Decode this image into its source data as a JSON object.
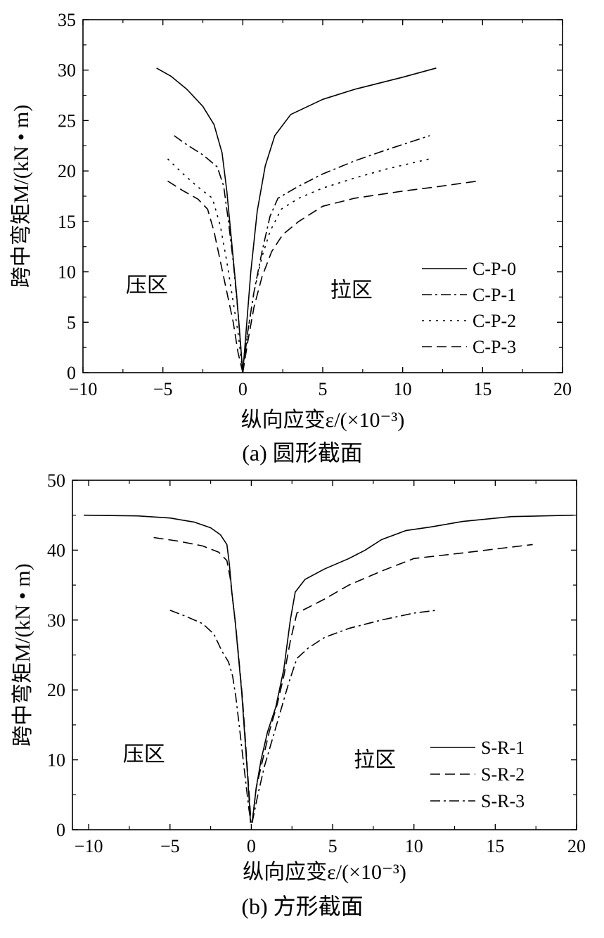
{
  "chart_data": [
    {
      "type": "line",
      "caption": "(a) 圆形截面",
      "xlabel": "纵向应变ε/(×10⁻³)",
      "ylabel": "跨中弯矩M/(kN • m)",
      "xlim": [
        -10,
        20
      ],
      "ylim": [
        0,
        35
      ],
      "xticks": [
        -10,
        -5,
        0,
        5,
        10,
        15,
        20
      ],
      "xtick_labels": [
        "−10",
        "−5",
        "0",
        "5",
        "10",
        "15",
        "20"
      ],
      "yticks": [
        0,
        5,
        10,
        15,
        20,
        25,
        30,
        35
      ],
      "ytick_labels": [
        "0",
        "5",
        "10",
        "15",
        "20",
        "25",
        "30",
        "35"
      ],
      "annotations": [
        {
          "text": "压区",
          "x": -6,
          "y": 8
        },
        {
          "text": "拉区",
          "x": 6.8,
          "y": 7.5
        }
      ],
      "legend_position": "bottom-right",
      "series": [
        {
          "name": "C-P-0",
          "dash": "solid",
          "left": [
            [
              -5.4,
              30.2
            ],
            [
              -4.5,
              29.4
            ],
            [
              -3.5,
              28.1
            ],
            [
              -2.5,
              26.4
            ],
            [
              -1.8,
              24.6
            ],
            [
              -1.3,
              21.8
            ],
            [
              -1.0,
              18
            ],
            [
              -0.7,
              13
            ],
            [
              -0.4,
              8
            ],
            [
              -0.2,
              4
            ],
            [
              0,
              0
            ]
          ],
          "right": [
            [
              0,
              0
            ],
            [
              0.2,
              4
            ],
            [
              0.5,
              10
            ],
            [
              0.9,
              16
            ],
            [
              1.4,
              20.5
            ],
            [
              2.0,
              23.5
            ],
            [
              3.0,
              25.6
            ],
            [
              5.0,
              27.1
            ],
            [
              7.0,
              28.1
            ],
            [
              10.0,
              29.3
            ],
            [
              12.1,
              30.2
            ]
          ]
        },
        {
          "name": "C-P-1",
          "dash": "dashdot",
          "left": [
            [
              -4.3,
              23.5
            ],
            [
              -3.5,
              22.6
            ],
            [
              -2.5,
              21.6
            ],
            [
              -1.6,
              20.4
            ],
            [
              -1.2,
              18.5
            ],
            [
              -0.9,
              15
            ],
            [
              -0.6,
              11
            ],
            [
              -0.3,
              6
            ],
            [
              0,
              0
            ]
          ],
          "right": [
            [
              0,
              0
            ],
            [
              0.3,
              4
            ],
            [
              0.7,
              8
            ],
            [
              1.2,
              12
            ],
            [
              1.7,
              15.5
            ],
            [
              2.2,
              17.3
            ],
            [
              3.5,
              18.5
            ],
            [
              5.0,
              19.7
            ],
            [
              7.0,
              21.0
            ],
            [
              9.0,
              22.1
            ],
            [
              11.7,
              23.5
            ]
          ]
        },
        {
          "name": "C-P-2",
          "dash": "dotted",
          "left": [
            [
              -4.7,
              21.2
            ],
            [
              -3.8,
              19.8
            ],
            [
              -2.8,
              18.4
            ],
            [
              -1.9,
              17.3
            ],
            [
              -1.4,
              14.5
            ],
            [
              -1.0,
              11
            ],
            [
              -0.6,
              7
            ],
            [
              -0.3,
              4
            ],
            [
              0,
              0
            ]
          ],
          "right": [
            [
              0,
              0
            ],
            [
              0.3,
              4
            ],
            [
              0.7,
              8
            ],
            [
              1.2,
              11.5
            ],
            [
              1.7,
              14
            ],
            [
              2.4,
              16.2
            ],
            [
              3.5,
              17.3
            ],
            [
              5.0,
              18.3
            ],
            [
              7.0,
              19.3
            ],
            [
              9.0,
              20.2
            ],
            [
              11.7,
              21.2
            ]
          ]
        },
        {
          "name": "C-P-3",
          "dash": "dashed",
          "left": [
            [
              -4.7,
              19.0
            ],
            [
              -3.8,
              18.1
            ],
            [
              -2.8,
              17.2
            ],
            [
              -2.2,
              16.2
            ],
            [
              -1.8,
              14
            ],
            [
              -1.4,
              11
            ],
            [
              -1.0,
              8
            ],
            [
              -0.6,
              5
            ],
            [
              -0.3,
              2
            ],
            [
              0,
              0
            ]
          ],
          "right": [
            [
              0,
              0
            ],
            [
              0.3,
              3
            ],
            [
              0.7,
              6.5
            ],
            [
              1.2,
              9.5
            ],
            [
              1.8,
              12
            ],
            [
              2.5,
              13.7
            ],
            [
              3.5,
              15
            ],
            [
              5.0,
              16.5
            ],
            [
              7.0,
              17.3
            ],
            [
              10.0,
              18
            ],
            [
              12.0,
              18.4
            ],
            [
              14.7,
              19.0
            ]
          ]
        }
      ]
    },
    {
      "type": "line",
      "caption": "(b) 方形截面",
      "xlabel": "纵向应变ε/(×10⁻³)",
      "ylabel": "跨中弯矩M/(kN • m)",
      "xlim": [
        -11,
        20
      ],
      "ylim": [
        0,
        50
      ],
      "xticks": [
        -10,
        -5,
        0,
        5,
        10,
        15,
        20
      ],
      "xtick_labels": [
        "−10",
        "−5",
        "0",
        "5",
        "10",
        "15",
        "20"
      ],
      "yticks": [
        0,
        10,
        20,
        30,
        40,
        50
      ],
      "ytick_labels": [
        "0",
        "10",
        "20",
        "30",
        "40",
        "50"
      ],
      "annotations": [
        {
          "text": "压区",
          "x": -6.6,
          "y": 9.8
        },
        {
          "text": "拉区",
          "x": 7.6,
          "y": 9
        }
      ],
      "legend_position": "bottom-right",
      "series": [
        {
          "name": "S-R-1",
          "dash": "solid",
          "left": [
            [
              -10.3,
              45
            ],
            [
              -7,
              44.9
            ],
            [
              -5,
              44.6
            ],
            [
              -3.5,
              44
            ],
            [
              -2.5,
              43.2
            ],
            [
              -1.9,
              42.2
            ],
            [
              -1.5,
              40.8
            ],
            [
              -1.35,
              38
            ],
            [
              -1.2,
              34
            ],
            [
              -1.0,
              30
            ],
            [
              -0.8,
              25
            ],
            [
              -0.6,
              20
            ],
            [
              -0.45,
              15
            ],
            [
              -0.3,
              10
            ],
            [
              -0.15,
              5
            ],
            [
              -0.05,
              1
            ]
          ],
          "right": [
            [
              0.05,
              1
            ],
            [
              0.3,
              6
            ],
            [
              0.6,
              10
            ],
            [
              1.0,
              14
            ],
            [
              1.5,
              17.5
            ],
            [
              2.0,
              23
            ],
            [
              2.4,
              30
            ],
            [
              2.7,
              34
            ],
            [
              3.3,
              35.8
            ],
            [
              4.5,
              37.3
            ],
            [
              6.0,
              38.8
            ],
            [
              7.0,
              40
            ],
            [
              8.0,
              41.5
            ],
            [
              9.5,
              42.8
            ],
            [
              11,
              43.3
            ],
            [
              13,
              44.1
            ],
            [
              16,
              44.8
            ],
            [
              19.8,
              45
            ]
          ]
        },
        {
          "name": "S-R-2",
          "dash": "dashed",
          "left": [
            [
              -6,
              41.8
            ],
            [
              -4.5,
              41.3
            ],
            [
              -3,
              40.6
            ],
            [
              -2,
              39.7
            ],
            [
              -1.5,
              38.5
            ],
            [
              -1.3,
              36
            ],
            [
              -1.15,
              33
            ],
            [
              -0.95,
              29
            ],
            [
              -0.75,
              24
            ],
            [
              -0.55,
              19
            ],
            [
              -0.4,
              14
            ],
            [
              -0.25,
              9
            ],
            [
              -0.1,
              4
            ],
            [
              -0.02,
              1
            ]
          ],
          "right": [
            [
              0.05,
              1
            ],
            [
              0.3,
              6
            ],
            [
              0.7,
              10
            ],
            [
              1.1,
              14
            ],
            [
              1.6,
              18
            ],
            [
              2.0,
              22
            ],
            [
              2.4,
              27
            ],
            [
              2.8,
              31
            ],
            [
              3.5,
              31.8
            ],
            [
              4.5,
              33
            ],
            [
              6,
              35
            ],
            [
              8,
              37
            ],
            [
              10,
              38.8
            ],
            [
              13,
              39.6
            ],
            [
              17.3,
              40.8
            ]
          ]
        },
        {
          "name": "S-R-3",
          "dash": "dashdot",
          "left": [
            [
              -5,
              31.4
            ],
            [
              -4,
              30.5
            ],
            [
              -3,
              29.5
            ],
            [
              -2.3,
              28
            ],
            [
              -1.8,
              25.5
            ],
            [
              -1.4,
              24
            ],
            [
              -1.15,
              22
            ],
            [
              -0.95,
              19
            ],
            [
              -0.75,
              15
            ],
            [
              -0.55,
              11
            ],
            [
              -0.35,
              7
            ],
            [
              -0.15,
              3
            ],
            [
              -0.02,
              1
            ]
          ],
          "right": [
            [
              0.05,
              1
            ],
            [
              0.4,
              5
            ],
            [
              0.8,
              9
            ],
            [
              1.3,
              13
            ],
            [
              1.8,
              17
            ],
            [
              2.3,
              21
            ],
            [
              2.8,
              24.5
            ],
            [
              3.5,
              26
            ],
            [
              4.5,
              27.5
            ],
            [
              6,
              28.8
            ],
            [
              8,
              30
            ],
            [
              10,
              31
            ],
            [
              11.4,
              31.4
            ]
          ]
        }
      ]
    }
  ]
}
